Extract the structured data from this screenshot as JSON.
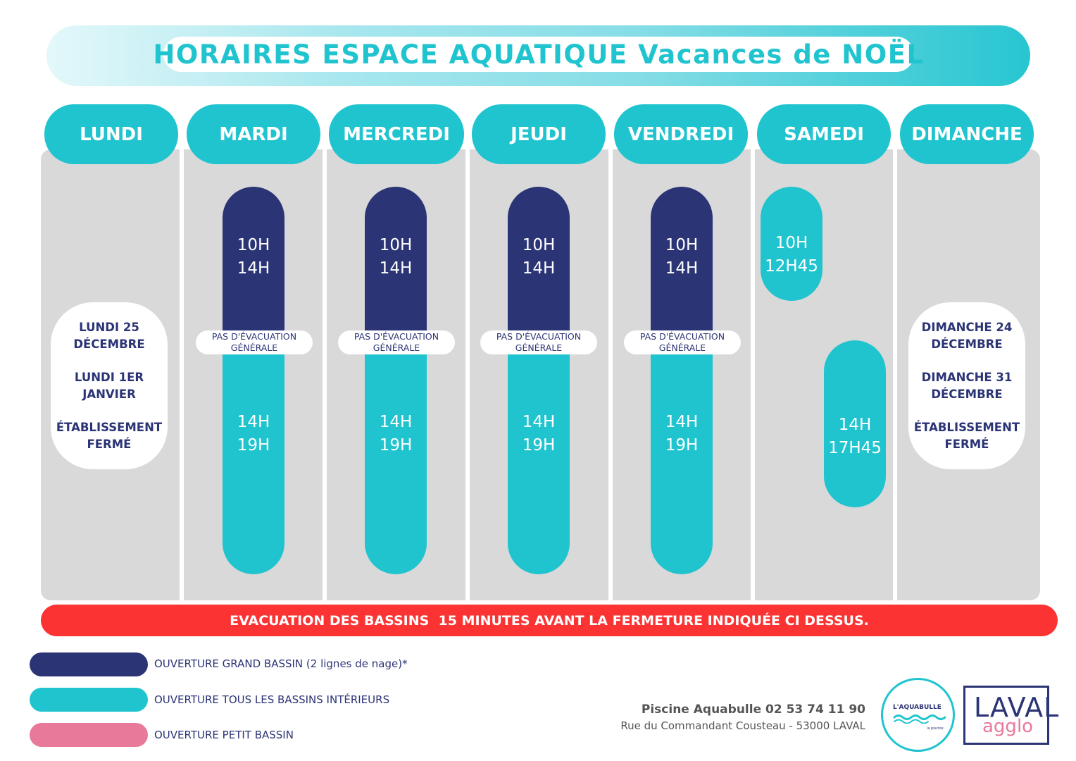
{
  "title": "HORAIRES ESPACE AQUATIQUE Vacances de NOËL",
  "days": [
    "LUNDI",
    "MARDI",
    "MERCREDI",
    "JEUDI",
    "VENDREDI",
    "SAMEDI",
    "DIMANCHE"
  ],
  "schedule": {
    "mardi": {
      "morning": [
        "10H",
        "14H"
      ],
      "evac": [
        "PAS D'ÉVACUATION",
        "GÉNÉRALE"
      ],
      "afternoon": [
        "14H",
        "19H"
      ]
    },
    "mercredi": {
      "morning": [
        "10H",
        "14H"
      ],
      "evac": [
        "PAS D'ÉVACUATION",
        "GÉNÉRALE"
      ],
      "afternoon": [
        "14H",
        "19H"
      ]
    },
    "jeudi": {
      "morning": [
        "10H",
        "14H"
      ],
      "evac": [
        "PAS D'ÉVACUATION",
        "GÉNÉRALE"
      ],
      "afternoon": [
        "14H",
        "19H"
      ]
    },
    "vendredi": {
      "morning": [
        "10H",
        "14H"
      ],
      "evac": [
        "PAS D'ÉVACUATION",
        "GÉNÉRALE"
      ],
      "afternoon": [
        "14H",
        "19H"
      ]
    },
    "samedi": {
      "morning": [
        "10H",
        "12H45"
      ],
      "afternoon": [
        "14H",
        "17H45"
      ]
    }
  },
  "closures": {
    "lundi": [
      "LUNDI 25 DÉCEMBRE",
      "LUNDI 1ER JANVIER",
      "ÉTABLISSEMENT FERMÉ"
    ],
    "dimanche": [
      "DIMANCHE 24 DÉCEMBRE",
      "DIMANCHE 31 DÉCEMBRE",
      "ÉTABLISSEMENT FERMÉ"
    ]
  },
  "alert": "EVACUATION DES BASSINS  15 MINUTES AVANT LA FERMETURE INDIQUÉE CI DESSUS.",
  "legend": [
    {
      "label": "OUVERTURE GRAND BASSIN (2 lignes de nage)*",
      "color": "#2b3475"
    },
    {
      "label": "OUVERTURE TOUS LES BASSINS INTÉRIEURS",
      "color": "#20c4cf"
    },
    {
      "label": "OUVERTURE PETIT BASSIN",
      "color": "#e8799a"
    }
  ],
  "contact": {
    "name": "Piscine Aquabulle 02 53 74 11 90",
    "address": "Rue du Commandant Cousteau - 53000 LAVAL"
  },
  "logos": {
    "aquabulle": {
      "name": "L'AQUABULLE",
      "tagline": "la piscine"
    },
    "laval": {
      "line1": "LAVAL",
      "line2": "agglo"
    }
  },
  "colors": {
    "navy": "#2b3475",
    "teal": "#20c4cf",
    "red": "#fb3333",
    "pink": "#e8799a",
    "grey": "#d9d9d9"
  }
}
